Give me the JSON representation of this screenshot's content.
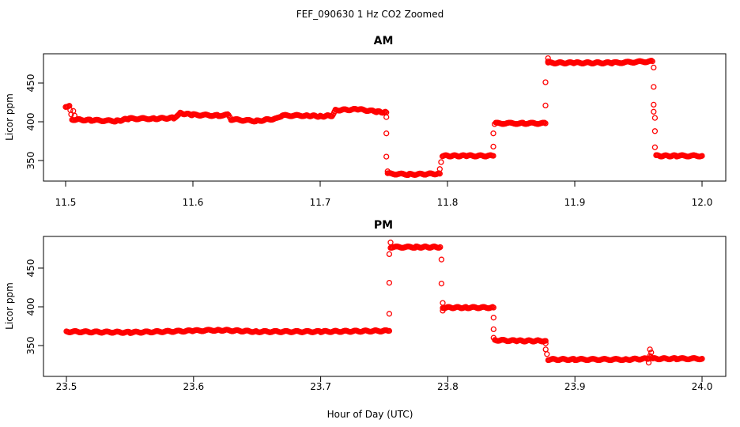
{
  "figure": {
    "title": "FEF_090630  1 Hz CO2 Zoomed",
    "xlabel": "Hour of Day (UTC)"
  },
  "colors": {
    "points": "#ff0000",
    "axes": "#000000"
  },
  "chart_data": [
    {
      "type": "scatter",
      "title": "AM",
      "xlabel": "Hour of Day (UTC)",
      "ylabel": "Licor ppm",
      "xlim": [
        11.5,
        12.0
      ],
      "ylim": [
        325,
        485
      ],
      "xticks": [
        "11.5",
        "11.6",
        "11.7",
        "11.8",
        "11.9",
        "12.0"
      ],
      "yticks": [
        "350",
        "400",
        "450"
      ],
      "series": [
        {
          "dense_segments": [
            [
              [
                11.5,
                420
              ],
              [
                11.503,
                420
              ],
              [
                11.505,
                403
              ],
              [
                11.52,
                402
              ],
              [
                11.54,
                401
              ],
              [
                11.55,
                404
              ],
              [
                11.57,
                404
              ],
              [
                11.585,
                405
              ],
              [
                11.59,
                411
              ],
              [
                11.6,
                409
              ],
              [
                11.62,
                408
              ],
              [
                11.628,
                409
              ],
              [
                11.63,
                403
              ],
              [
                11.65,
                401
              ],
              [
                11.665,
                404
              ],
              [
                11.67,
                408
              ],
              [
                11.69,
                408
              ],
              [
                11.7,
                407
              ],
              [
                11.71,
                408
              ],
              [
                11.712,
                415
              ],
              [
                11.73,
                416
              ],
              [
                11.745,
                413
              ],
              [
                11.752,
                412
              ]
            ],
            [
              [
                11.753,
                333
              ],
              [
                11.77,
                332
              ],
              [
                11.794,
                333
              ]
            ],
            [
              [
                11.796,
                356
              ],
              [
                11.815,
                356
              ],
              [
                11.836,
                356
              ]
            ],
            [
              [
                11.838,
                398
              ],
              [
                11.86,
                398
              ],
              [
                11.877,
                398
              ]
            ],
            [
              [
                11.879,
                476
              ],
              [
                11.9,
                476
              ],
              [
                11.93,
                476
              ],
              [
                11.961,
                478
              ]
            ],
            [
              [
                11.964,
                356
              ],
              [
                11.98,
                356
              ],
              [
                12.0,
                356
              ]
            ]
          ],
          "points": [
            [
              11.506,
              414
            ],
            [
              11.507,
              408
            ],
            [
              11.752,
              406
            ],
            [
              11.752,
              385
            ],
            [
              11.752,
              355
            ],
            [
              11.753,
              336
            ],
            [
              11.794,
              339
            ],
            [
              11.795,
              348
            ],
            [
              11.836,
              368
            ],
            [
              11.836,
              385
            ],
            [
              11.837,
              397
            ],
            [
              11.877,
              421
            ],
            [
              11.877,
              451
            ],
            [
              11.879,
              482
            ],
            [
              11.879,
              478
            ],
            [
              11.962,
              470
            ],
            [
              11.962,
              445
            ],
            [
              11.962,
              422
            ],
            [
              11.962,
              413
            ],
            [
              11.963,
              405
            ],
            [
              11.963,
              388
            ],
            [
              11.963,
              367
            ],
            [
              11.964,
              357
            ]
          ]
        }
      ]
    },
    {
      "type": "scatter",
      "title": "PM",
      "xlabel": "Hour of Day (UTC)",
      "ylabel": "Licor ppm",
      "xlim": [
        23.5,
        24.0
      ],
      "ylim": [
        323,
        484
      ],
      "xticks": [
        "23.5",
        "23.6",
        "23.7",
        "23.8",
        "23.9",
        "24.0"
      ],
      "yticks": [
        "350",
        "400",
        "450"
      ],
      "series": [
        {
          "dense_segments": [
            [
              [
                23.5,
                368
              ],
              [
                23.55,
                367
              ],
              [
                23.6,
                369
              ],
              [
                23.62,
                370
              ],
              [
                23.65,
                368
              ],
              [
                23.7,
                368
              ],
              [
                23.754,
                369
              ]
            ],
            [
              [
                23.755,
                477
              ],
              [
                23.775,
                477
              ],
              [
                23.794,
                477
              ]
            ],
            [
              [
                23.796,
                399
              ],
              [
                23.815,
                399
              ],
              [
                23.836,
                399
              ]
            ],
            [
              [
                23.837,
                357
              ],
              [
                23.855,
                356
              ],
              [
                23.877,
                356
              ]
            ],
            [
              [
                23.879,
                332
              ],
              [
                23.9,
                332
              ],
              [
                23.94,
                332
              ],
              [
                23.958,
                333
              ]
            ],
            [
              [
                23.959,
                337
              ],
              [
                23.962,
                333
              ],
              [
                23.98,
                333
              ],
              [
                24.0,
                333
              ]
            ]
          ],
          "points": [
            [
              23.754,
              391
            ],
            [
              23.754,
              431
            ],
            [
              23.754,
              468
            ],
            [
              23.755,
              483
            ],
            [
              23.795,
              461
            ],
            [
              23.795,
              430
            ],
            [
              23.796,
              405
            ],
            [
              23.796,
              395
            ],
            [
              23.836,
              386
            ],
            [
              23.836,
              371
            ],
            [
              23.836,
              360
            ],
            [
              23.877,
              353
            ],
            [
              23.877,
              345
            ],
            [
              23.878,
              339
            ],
            [
              23.958,
              328
            ],
            [
              23.959,
              345
            ],
            [
              23.96,
              341
            ]
          ]
        }
      ]
    }
  ]
}
